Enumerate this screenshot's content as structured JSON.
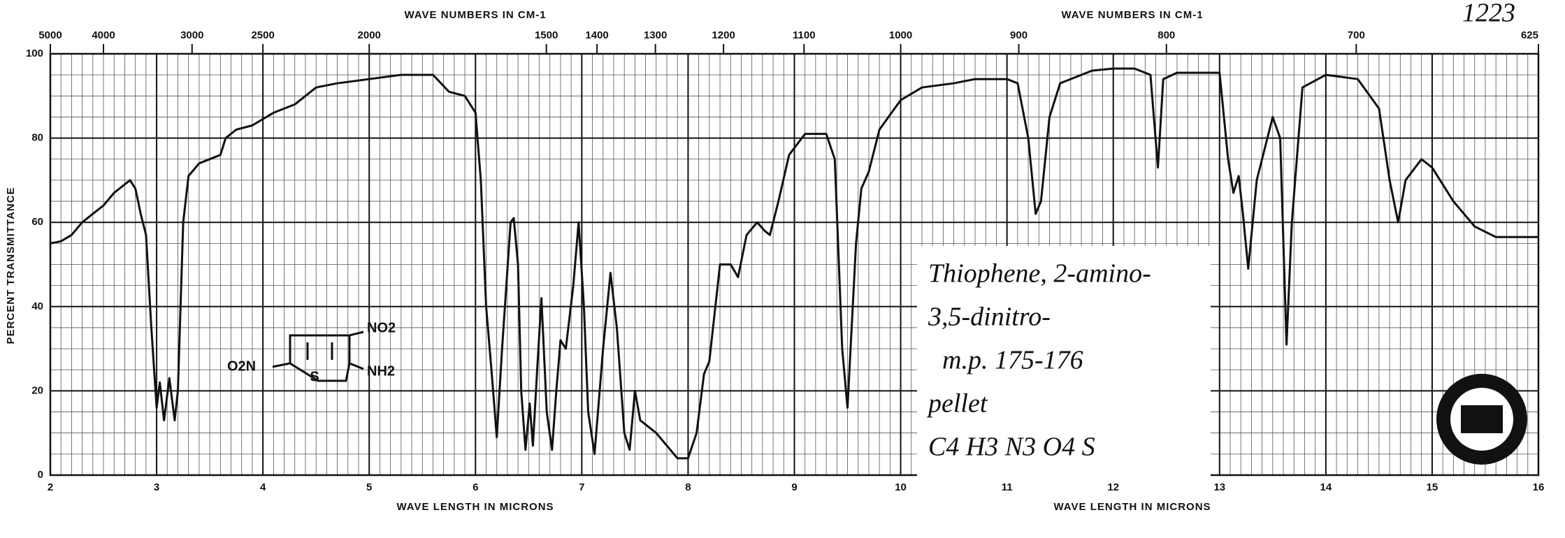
{
  "chart_data": {
    "type": "line",
    "title_hidden": null,
    "xlabel": "WAVE LENGTH IN MICRONS",
    "x2label": "WAVE NUMBERS IN CM-1",
    "ylabel": "PERCENT TRANSMITTANCE",
    "sample_number": "1223",
    "annotations": [
      "Thiophene, 2-amino-",
      "3,5-dinitro-",
      "m.p. 175-176",
      "pellet",
      "C4 H3 N3 O4 S"
    ],
    "structure_labels": [
      "NO2",
      "NH2",
      "O2N",
      "S"
    ],
    "xlim": [
      2,
      16
    ],
    "ylim": [
      0,
      100
    ],
    "xticks": [
      2,
      3,
      4,
      5,
      6,
      7,
      8,
      9,
      10,
      11,
      12,
      13,
      14,
      15,
      16
    ],
    "x2ticks": [
      5000,
      4000,
      3000,
      2500,
      2000,
      1500,
      1400,
      1300,
      1200,
      1100,
      1000,
      900,
      800,
      700,
      625
    ],
    "yticks": [
      0,
      20,
      40,
      60,
      80,
      100
    ],
    "grid": true,
    "color": "#111111",
    "x": [
      2.0,
      2.1,
      2.2,
      2.3,
      2.4,
      2.5,
      2.6,
      2.7,
      2.75,
      2.8,
      2.85,
      2.9,
      2.95,
      3.0,
      3.03,
      3.07,
      3.12,
      3.17,
      3.2,
      3.25,
      3.3,
      3.4,
      3.6,
      3.65,
      3.75,
      3.9,
      4.1,
      4.3,
      4.5,
      4.7,
      5.0,
      5.3,
      5.6,
      5.75,
      5.9,
      6.0,
      6.05,
      6.1,
      6.15,
      6.2,
      6.25,
      6.33,
      6.36,
      6.4,
      6.43,
      6.47,
      6.51,
      6.54,
      6.58,
      6.62,
      6.67,
      6.72,
      6.76,
      6.8,
      6.85,
      6.92,
      6.97,
      7.02,
      7.06,
      7.12,
      7.2,
      7.27,
      7.33,
      7.4,
      7.45,
      7.5,
      7.55,
      7.7,
      7.8,
      7.9,
      8.0,
      8.08,
      8.15,
      8.2,
      8.3,
      8.4,
      8.47,
      8.55,
      8.65,
      8.72,
      8.77,
      8.85,
      8.95,
      9.1,
      9.3,
      9.38,
      9.45,
      9.5,
      9.58,
      9.63,
      9.7,
      9.8,
      10.0,
      10.2,
      10.5,
      10.7,
      11.0,
      11.1,
      11.2,
      11.27,
      11.32,
      11.4,
      11.5,
      11.8,
      12.0,
      12.2,
      12.35,
      12.42,
      12.47,
      12.6,
      13.0,
      13.08,
      13.13,
      13.18,
      13.22,
      13.27,
      13.35,
      13.5,
      13.57,
      13.63,
      13.68,
      13.78,
      14.0,
      14.3,
      14.5,
      14.6,
      14.68,
      14.75,
      14.9,
      15.0,
      15.2,
      15.4,
      15.6,
      16.0
    ],
    "values": [
      55,
      55.5,
      57,
      60,
      62,
      64,
      67,
      69,
      70,
      68,
      62,
      57,
      35,
      16,
      22,
      13,
      23,
      13,
      20,
      60,
      71,
      74,
      76,
      80,
      82,
      83,
      86,
      88,
      92,
      93,
      94,
      95,
      95,
      91,
      90,
      86,
      70,
      40,
      25,
      9,
      30,
      60,
      61,
      50,
      20,
      6,
      17,
      7,
      25,
      42,
      15,
      6,
      20,
      32,
      30,
      45,
      60,
      40,
      15,
      5,
      30,
      48,
      35,
      10,
      6,
      20,
      13,
      10,
      7,
      4,
      4,
      10,
      24,
      27,
      50,
      50,
      47,
      57,
      60,
      58,
      57,
      65,
      76,
      81,
      81,
      75,
      30,
      16,
      55,
      68,
      72,
      82,
      89,
      92,
      93,
      94,
      94,
      93,
      80,
      62,
      65,
      85,
      93,
      96,
      96.5,
      96.5,
      95,
      73,
      94,
      95.5,
      95.5,
      75,
      67,
      71,
      62,
      49,
      70,
      85,
      80,
      31,
      60,
      92,
      95,
      94,
      87,
      70,
      60,
      70,
      75,
      73,
      65,
      59,
      56.5,
      56.5
    ]
  }
}
